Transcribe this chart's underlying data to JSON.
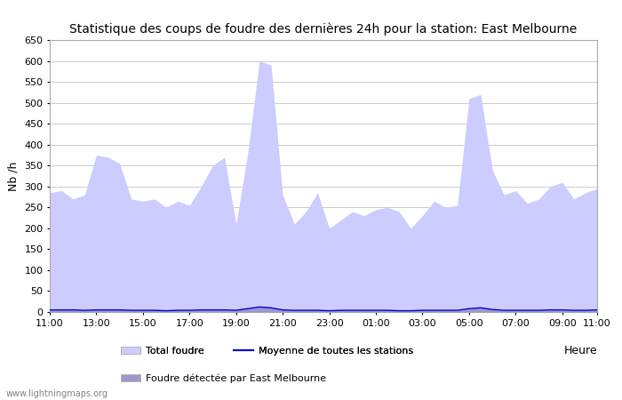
{
  "title": "Statistique des coups de foudre des dernières 24h pour la station: East Melbourne",
  "xlabel": "Heure",
  "ylabel": "Nb /h",
  "ylim": [
    0,
    650
  ],
  "yticks": [
    0,
    50,
    100,
    150,
    200,
    250,
    300,
    350,
    400,
    450,
    500,
    550,
    600,
    650
  ],
  "x_labels": [
    "11:00",
    "13:00",
    "15:00",
    "17:00",
    "19:00",
    "21:00",
    "23:00",
    "01:00",
    "03:00",
    "05:00",
    "07:00",
    "09:00",
    "11:00"
  ],
  "watermark": "www.lightningmaps.org",
  "legend_total": "Total foudre",
  "legend_moyenne": "Moyenne de toutes les stations",
  "legend_local": "Foudre détectée par East Melbourne",
  "fill_color_total": "#ccccff",
  "fill_color_local": "#9999cc",
  "line_color_moyenne": "#0000cc",
  "background_color": "#ffffff",
  "grid_color": "#cccccc",
  "total_foudre": [
    285,
    290,
    270,
    280,
    375,
    370,
    355,
    270,
    265,
    270,
    250,
    265,
    255,
    300,
    350,
    370,
    210,
    380,
    600,
    590,
    280,
    210,
    240,
    285,
    200,
    220,
    240,
    230,
    245,
    250,
    240,
    200,
    230,
    265,
    250,
    255,
    510,
    520,
    340,
    280,
    290,
    260,
    270,
    300,
    310,
    270,
    285,
    295
  ],
  "local_foudre": [
    5,
    5,
    5,
    4,
    5,
    5,
    5,
    4,
    4,
    4,
    3,
    4,
    4,
    5,
    5,
    5,
    4,
    8,
    12,
    10,
    5,
    4,
    4,
    4,
    3,
    4,
    4,
    4,
    4,
    4,
    3,
    3,
    4,
    4,
    4,
    4,
    8,
    10,
    6,
    4,
    4,
    4,
    4,
    5,
    5,
    4,
    4,
    5
  ],
  "num_points": 48,
  "x_tick_indices": [
    0,
    4,
    8,
    12,
    16,
    20,
    24,
    28,
    32,
    36,
    40,
    44,
    47
  ]
}
